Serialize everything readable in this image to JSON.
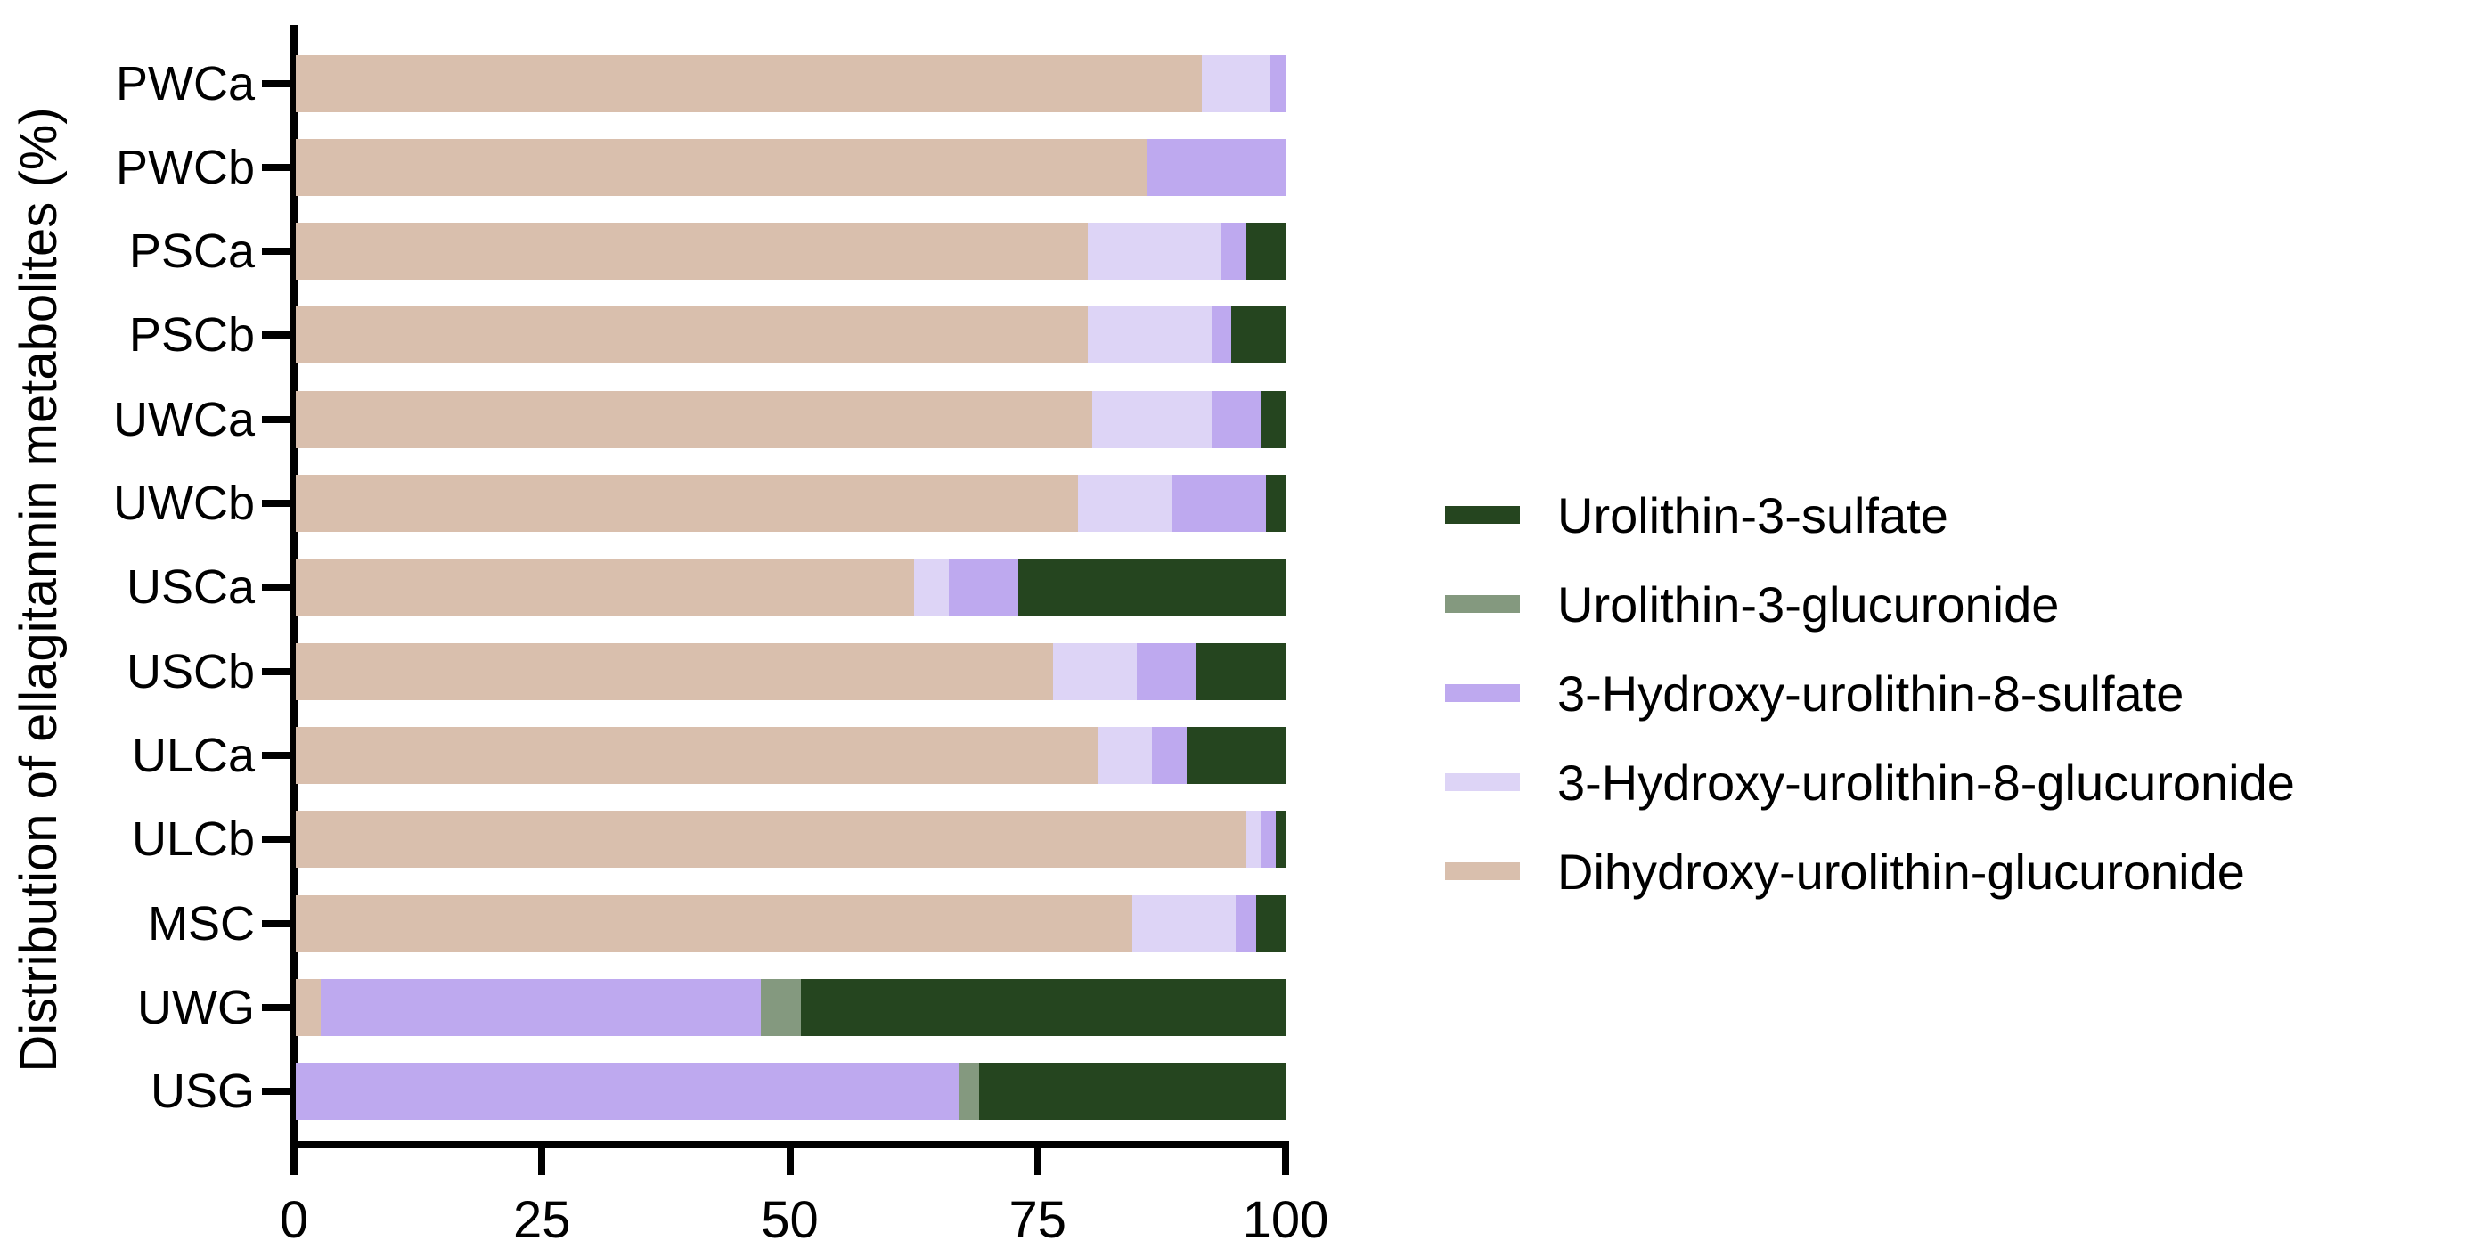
{
  "chart_data": {
    "type": "bar",
    "orientation": "horizontal",
    "stacked": true,
    "ylabel": "Distribution of ellagitannin metabolites (%)",
    "xlabel": "",
    "xlim": [
      0,
      100
    ],
    "x_ticks": [
      0,
      25,
      50,
      75,
      100
    ],
    "grid": false,
    "legend_position": "right",
    "categories": [
      "PWCa",
      "PWCb",
      "PSCa",
      "PSCb",
      "UWCa",
      "UWCb",
      "USCa",
      "USCb",
      "ULCa",
      "ULCb",
      "MSC",
      "UWG",
      "USG"
    ],
    "series": [
      {
        "name": "Dihydroxy-urolithin-glucuronide",
        "color": "#d9bfad",
        "values": [
          91.5,
          86,
          80,
          80,
          80.5,
          79,
          62.5,
          76.5,
          81,
          96,
          84.5,
          2.5,
          0
        ]
      },
      {
        "name": "3-Hydroxy-urolithin-8-glucuronide",
        "color": "#ddd4f6",
        "values": [
          7,
          0,
          13.5,
          12.5,
          12,
          9.5,
          3.5,
          8.5,
          5.5,
          1.5,
          10.5,
          0,
          0
        ]
      },
      {
        "name": "3-Hydroxy-urolithin-8-sulfate",
        "color": "#bea9ef",
        "values": [
          1.5,
          14,
          2.5,
          2,
          5,
          9.5,
          7,
          6,
          3.5,
          1.5,
          2,
          44.5,
          67
        ]
      },
      {
        "name": "Urolithin-3-glucuronide",
        "color": "#84997f",
        "values": [
          0,
          0,
          0,
          0,
          0,
          0,
          0,
          0,
          0,
          0,
          0,
          4,
          2
        ]
      },
      {
        "name": "Urolithin-3-sulfate",
        "color": "#25451f",
        "values": [
          0,
          0,
          4,
          5.5,
          2.5,
          2,
          27,
          9,
          10,
          1,
          3,
          49,
          31
        ]
      }
    ],
    "legend_order": [
      "Urolithin-3-sulfate",
      "Urolithin-3-glucuronide",
      "3-Hydroxy-urolithin-8-sulfate",
      "3-Hydroxy-urolithin-8-glucuronide",
      "Dihydroxy-urolithin-glucuronide"
    ]
  }
}
